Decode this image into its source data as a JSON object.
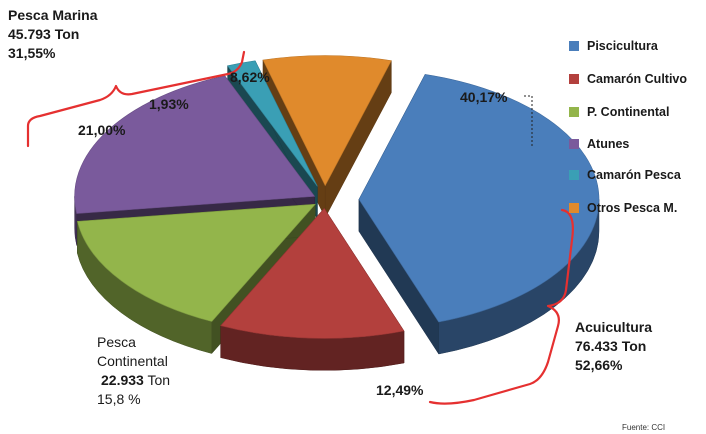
{
  "chart_data": {
    "type": "pie",
    "slices": [
      {
        "label": "Piscicultura",
        "value": 40.17,
        "color": "#4a7ebb",
        "data_label": "40,17%"
      },
      {
        "label": "Camarón Cultivo",
        "value": 12.49,
        "color": "#b3403d",
        "data_label": "12,49%"
      },
      {
        "label": "P. Continental",
        "value": 15.8,
        "color": "#93b54b",
        "data_label": ""
      },
      {
        "label": "Atunes",
        "value": 21.0,
        "color": "#7a5a9c",
        "data_label": "21,00%"
      },
      {
        "label": "Camarón Pesca",
        "value": 1.93,
        "color": "#3a9fb5",
        "data_label": "1,93%"
      },
      {
        "label": "Otros Pesca M.",
        "value": 8.62,
        "color": "#e08a2c",
        "data_label": "8,62%"
      }
    ],
    "legend_position": "right",
    "style": "3d-exploded"
  },
  "annotations": {
    "marina": {
      "title": "Pesca Marina",
      "amount": "45.793 Ton",
      "percent": "31,55%"
    },
    "acuicultura": {
      "title": "Acuicultura",
      "amount": "76.433 Ton",
      "percent": "52,66%"
    },
    "continental": {
      "title1": "Pesca",
      "title2": "Continental",
      "amount_value": "22.933",
      "amount_unit": "Ton",
      "percent": "15,8 %"
    }
  },
  "source": "Fuente: CCI",
  "bracket_color": "#e53030"
}
